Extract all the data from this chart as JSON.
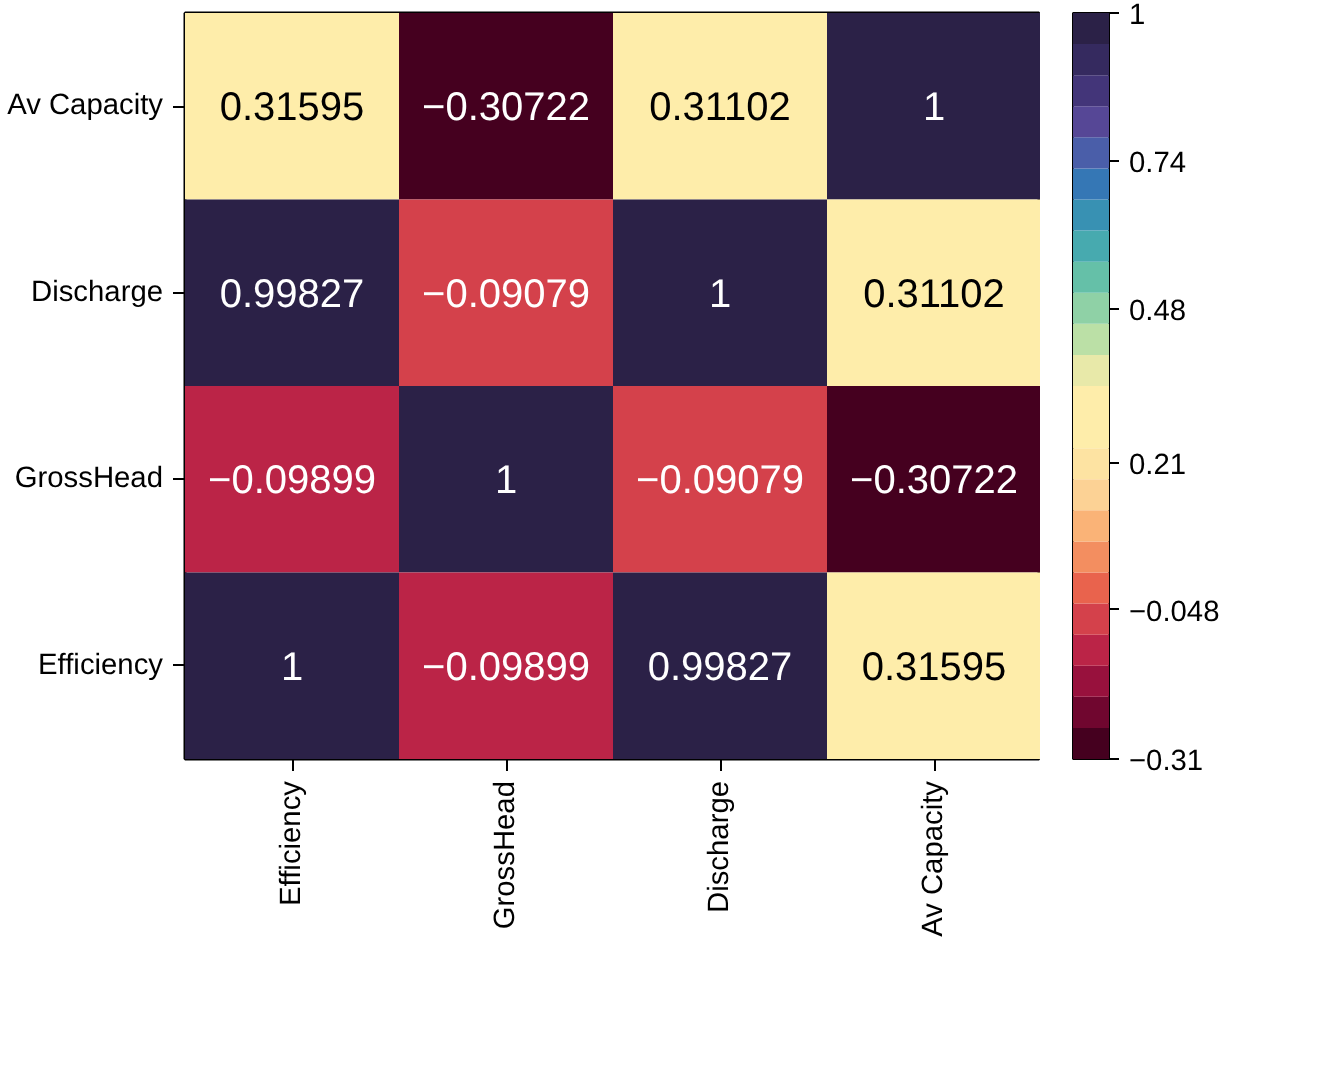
{
  "chart_data": {
    "type": "heatmap",
    "categories": [
      "Efficiency",
      "GrossHead",
      "Discharge",
      "Av Capacity"
    ],
    "y_categories": [
      "Av Capacity",
      "Discharge",
      "GrossHead",
      "Efficiency"
    ],
    "cells": [
      [
        0.31595,
        -0.30722,
        0.31102,
        1
      ],
      [
        0.99827,
        -0.09079,
        1,
        0.31102
      ],
      [
        -0.09899,
        1,
        -0.09079,
        -0.30722
      ],
      [
        1,
        -0.09899,
        0.99827,
        0.31595
      ]
    ],
    "data_labels": true,
    "clim": [
      -0.31,
      1
    ],
    "cticks": [
      1,
      0.74,
      0.48,
      0.21,
      -0.048,
      -0.31
    ]
  }
}
